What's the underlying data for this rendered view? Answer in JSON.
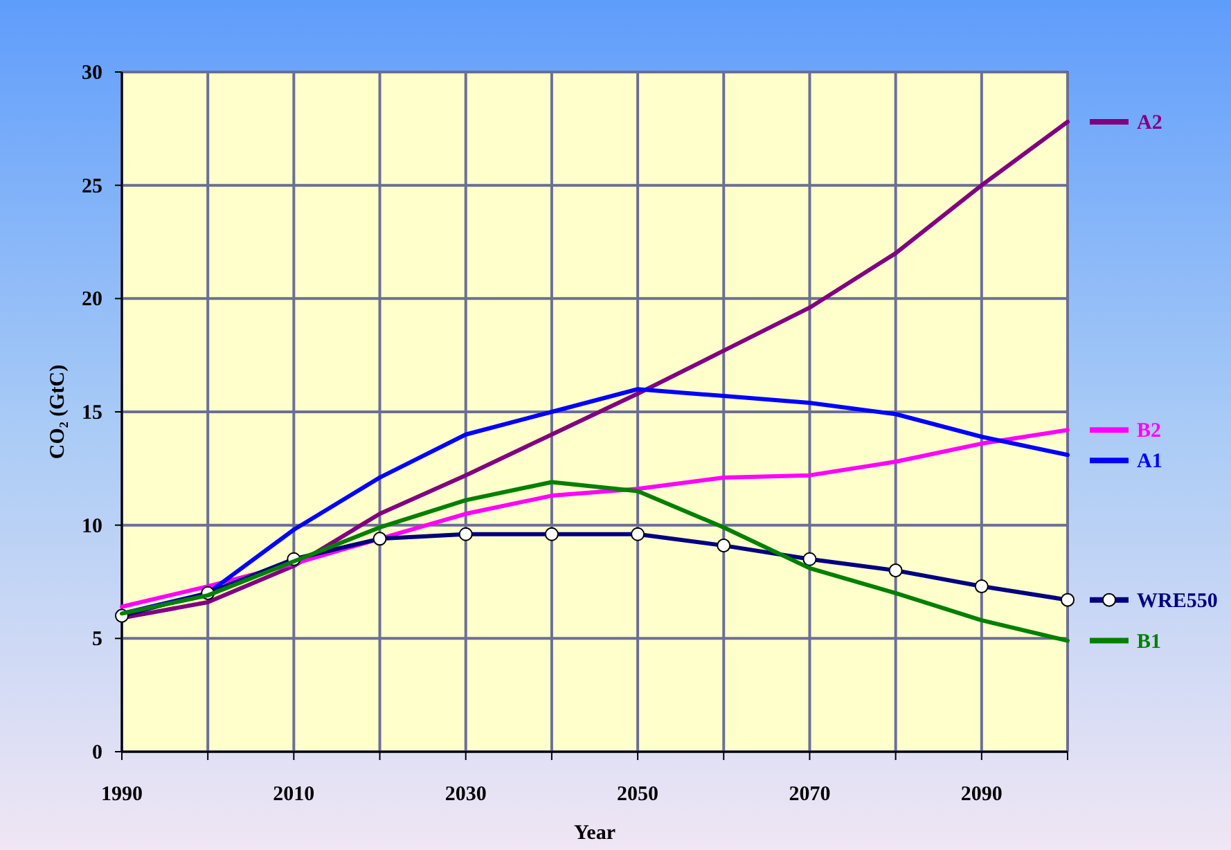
{
  "chart_data": {
    "type": "line",
    "xlabel": "Year",
    "ylabel": "CO₂ (GtC)",
    "x": [
      1990,
      2000,
      2010,
      2020,
      2030,
      2040,
      2050,
      2060,
      2070,
      2080,
      2090,
      2100
    ],
    "xlim": [
      1990,
      2100
    ],
    "xticks": [
      1990,
      {
        "value": 2000,
        "label": null
      },
      2010,
      {
        "value": 2020,
        "label": null
      },
      2030,
      {
        "value": 2040,
        "label": null
      },
      2050,
      {
        "value": 2060,
        "label": null
      },
      2070,
      {
        "value": 2080,
        "label": null
      },
      2090,
      {
        "value": 2100,
        "label": null
      }
    ],
    "ylim": [
      0,
      30
    ],
    "yticks": [
      0,
      5,
      10,
      15,
      20,
      25,
      30
    ],
    "grid": true,
    "legend": "right",
    "line_style": "solid",
    "series": [
      {
        "name": "A2",
        "color": "#800080",
        "marker": "none",
        "values": [
          5.9,
          6.6,
          8.2,
          10.5,
          12.2,
          14.0,
          15.8,
          17.7,
          19.6,
          22.0,
          25.0,
          27.8
        ]
      },
      {
        "name": "B2",
        "color": "#ff00ff",
        "marker": "none",
        "values": [
          6.4,
          7.3,
          8.3,
          9.4,
          10.5,
          11.3,
          11.6,
          12.1,
          12.2,
          12.8,
          13.6,
          14.2
        ]
      },
      {
        "name": "A1",
        "color": "#0000ff",
        "marker": "none",
        "values": [
          6.1,
          7.0,
          9.8,
          12.1,
          14.0,
          15.0,
          16.0,
          15.7,
          15.4,
          14.9,
          13.9,
          13.1
        ]
      },
      {
        "name": "WRE550",
        "color": "#000080",
        "marker": "circle",
        "values": [
          6.0,
          7.0,
          8.5,
          9.4,
          9.6,
          9.6,
          9.6,
          9.1,
          8.5,
          8.0,
          7.3,
          6.7
        ]
      },
      {
        "name": "B1",
        "color": "#008000",
        "marker": "none",
        "values": [
          6.1,
          6.9,
          8.4,
          9.9,
          11.1,
          11.9,
          11.5,
          9.9,
          8.1,
          7.0,
          5.8,
          4.9
        ]
      }
    ]
  }
}
